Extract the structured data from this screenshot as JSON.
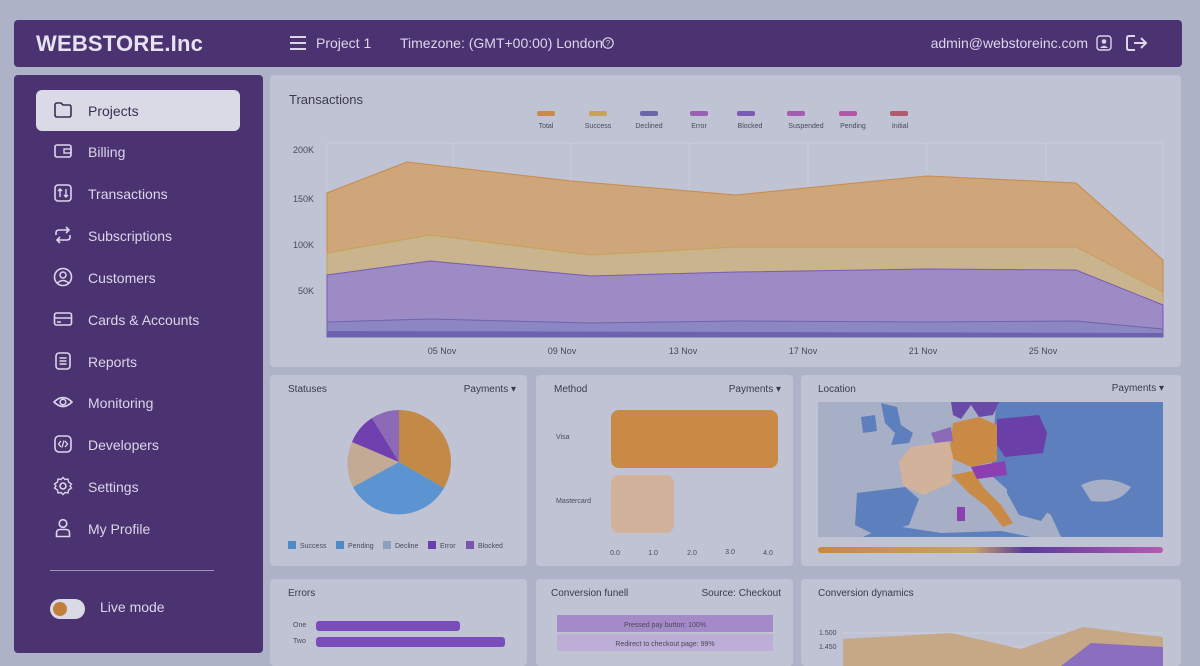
{
  "header": {
    "brand": "WEBSTORE.Inc",
    "project": "Project 1",
    "timezone": "Timezone: (GMT+00:00) London",
    "email": "admin@webstoreinc.com"
  },
  "sidebar": {
    "items": [
      {
        "label": "Projects",
        "icon": "folder-icon"
      },
      {
        "label": "Billing",
        "icon": "wallet-icon"
      },
      {
        "label": "Transactions",
        "icon": "transfer-icon"
      },
      {
        "label": "Subscriptions",
        "icon": "repeat-icon"
      },
      {
        "label": "Customers",
        "icon": "user-circle-icon"
      },
      {
        "label": "Cards & Accounts",
        "icon": "card-icon"
      },
      {
        "label": "Reports",
        "icon": "document-icon"
      },
      {
        "label": "Monitoring",
        "icon": "eye-icon"
      },
      {
        "label": "Developers",
        "icon": "code-icon"
      },
      {
        "label": "Settings",
        "icon": "gear-icon"
      },
      {
        "label": "My Profile",
        "icon": "person-icon"
      }
    ],
    "live_mode": "Live mode"
  },
  "transactions": {
    "title": "Transactions",
    "legend": [
      {
        "name": "Total",
        "color": "#c98a4a"
      },
      {
        "name": "Success",
        "color": "#c6a25a"
      },
      {
        "name": "Declined",
        "color": "#6c66a8"
      },
      {
        "name": "Error",
        "color": "#9b5fb5"
      },
      {
        "name": "Blocked",
        "color": "#7a59b5"
      },
      {
        "name": "Suspended",
        "color": "#a65bb0"
      },
      {
        "name": "Pending",
        "color": "#b259a5"
      },
      {
        "name": "Initial",
        "color": "#b25b6e"
      }
    ],
    "yticks": [
      "200K",
      "150K",
      "100K",
      "50K"
    ],
    "xticks": [
      "05 Nov",
      "09 Nov",
      "13 Nov",
      "17 Nov",
      "21 Nov",
      "25 Nov"
    ]
  },
  "statuses": {
    "title": "Statuses",
    "dropdown": "Payments ▾",
    "legend": [
      {
        "name": "Success",
        "color": "#4e8ac7"
      },
      {
        "name": "Pending",
        "color": "#4e8ac7"
      },
      {
        "name": "Decline",
        "color": "#8aa0c0"
      },
      {
        "name": "Error",
        "color": "#6a3fa8"
      },
      {
        "name": "Blocked",
        "color": "#7a55b0"
      }
    ]
  },
  "method": {
    "title": "Method",
    "dropdown": "Payments ▾",
    "bars": [
      "Visa",
      "Mastercard"
    ],
    "xticks": [
      "0.0",
      "1.0",
      "2.0",
      "3.0",
      "4.0"
    ]
  },
  "location": {
    "title": "Location",
    "dropdown": "Payments ▾"
  },
  "errors": {
    "title": "Errors",
    "rows": [
      "One",
      "Two"
    ]
  },
  "funnel": {
    "title": "Conversion funell",
    "source": "Source: Checkout",
    "steps": [
      "Pressed pay button: 100%",
      "Redirect to checkout page: 99%"
    ]
  },
  "dynamics": {
    "title": "Conversion dynamics",
    "yticks": [
      "1.500",
      "1.450"
    ]
  },
  "chart_data": [
    {
      "type": "area",
      "title": "Transactions",
      "x": [
        "05 Nov",
        "09 Nov",
        "13 Nov",
        "17 Nov",
        "21 Nov",
        "25 Nov"
      ],
      "ylim": [
        0,
        200000
      ],
      "series": [
        {
          "name": "Total",
          "values": [
            185000,
            172000,
            155000,
            172000,
            170000,
            80000
          ]
        },
        {
          "name": "Success",
          "values": [
            112000,
            92000,
            100000,
            98000,
            98000,
            48000
          ]
        },
        {
          "name": "Declined",
          "values": [
            82000,
            68000,
            76000,
            72000,
            72000,
            38000
          ]
        }
      ]
    },
    {
      "type": "pie",
      "title": "Statuses",
      "labels": [
        "Success",
        "Pending",
        "Decline",
        "Error",
        "Blocked"
      ],
      "values": [
        34,
        38,
        12,
        9,
        7
      ]
    },
    {
      "type": "bar",
      "title": "Method",
      "categories": [
        "Visa",
        "Mastercard"
      ],
      "values": [
        4.0,
        1.5
      ],
      "xlim": [
        0,
        4.0
      ]
    }
  ]
}
